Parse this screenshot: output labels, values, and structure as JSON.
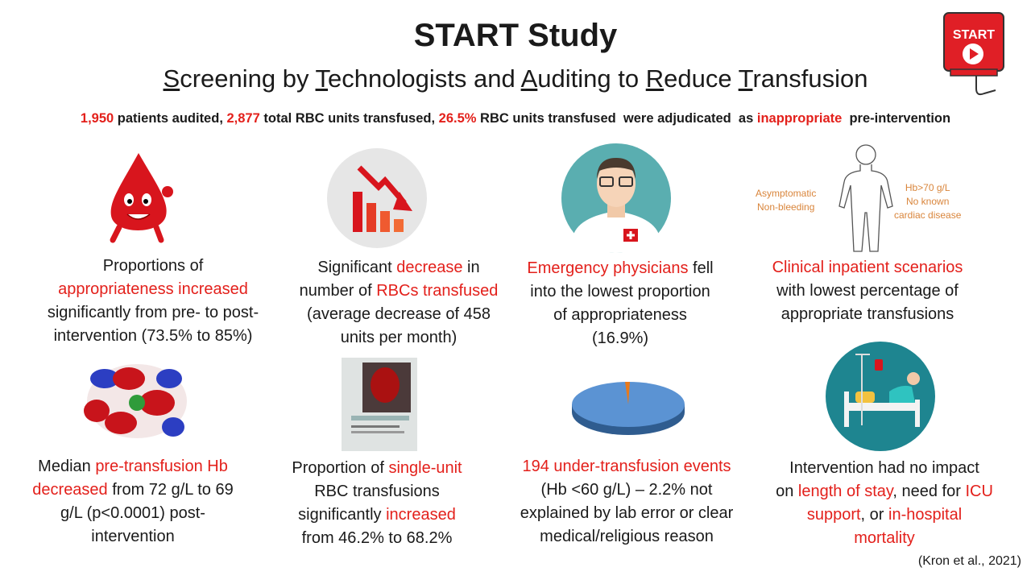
{
  "header": {
    "title": "START Study",
    "subtitle": [
      {
        "text": "S",
        "underline": true
      },
      {
        "text": "creening by "
      },
      {
        "text": "T",
        "underline": true
      },
      {
        "text": "echnologists and "
      },
      {
        "text": "A",
        "underline": true
      },
      {
        "text": "uditing to "
      },
      {
        "text": "R",
        "underline": true
      },
      {
        "text": "educe "
      },
      {
        "text": "T",
        "underline": true
      },
      {
        "text": "ransfusion"
      }
    ],
    "logo": "START"
  },
  "summary": [
    {
      "text": "1,950",
      "color": "#e3201b"
    },
    {
      "text": " patients audited, "
    },
    {
      "text": "2,877",
      "color": "#e3201b"
    },
    {
      "text": " total RBC units transfused, "
    },
    {
      "text": "26.5%",
      "color": "#e3201b"
    },
    {
      "text": " RBC units transfused  were adjudicated  as "
    },
    {
      "text": "inappropriate",
      "color": "#e3201b"
    },
    {
      "text": "  pre-intervention"
    }
  ],
  "body_labels": {
    "left": [
      "Asymptomatic",
      "Non-bleeding"
    ],
    "right": [
      "Hb>70 g/L",
      "No known",
      "cardiac disease"
    ]
  },
  "cards": [
    {
      "lines": [
        [
          {
            "text": "Proportions of"
          }
        ],
        [
          {
            "text": "appropriateness increased",
            "color": "#e3201b"
          }
        ],
        [
          {
            "text": "significantly from pre- to post-"
          }
        ],
        [
          {
            "text": "intervention (73.5% to 85%)"
          }
        ]
      ]
    },
    {
      "lines": [
        [
          {
            "text": "Significant "
          },
          {
            "text": "decrease",
            "color": "#e3201b"
          },
          {
            "text": " in"
          }
        ],
        [
          {
            "text": "number of "
          },
          {
            "text": "RBCs transfused",
            "color": "#e3201b"
          }
        ],
        [
          {
            "text": "(average decrease of 458"
          }
        ],
        [
          {
            "text": "units per month)"
          }
        ]
      ]
    },
    {
      "lines": [
        [
          {
            "text": "Emergency physicians",
            "color": "#e3201b"
          },
          {
            "text": " fell"
          }
        ],
        [
          {
            "text": "into the lowest proportion"
          }
        ],
        [
          {
            "text": "of appropriateness"
          }
        ],
        [
          {
            "text": "(16.9%)"
          }
        ]
      ]
    },
    {
      "lines": [
        [
          {
            "text": "Clinical inpatient scenarios",
            "color": "#e3201b"
          }
        ],
        [
          {
            "text": "with lowest percentage of"
          }
        ],
        [
          {
            "text": "appropriate transfusions"
          }
        ]
      ]
    },
    {
      "lines": [
        [
          {
            "text": "Median "
          },
          {
            "text": "pre-transfusion Hb",
            "color": "#e3201b"
          }
        ],
        [
          {
            "text": "decreased",
            "color": "#e3201b"
          },
          {
            "text": " from 72 g/L to 69"
          }
        ],
        [
          {
            "text": "g/L (p<0.0001) post-"
          }
        ],
        [
          {
            "text": "intervention"
          }
        ]
      ]
    },
    {
      "lines": [
        [
          {
            "text": "Proportion of "
          },
          {
            "text": "single-unit",
            "color": "#e3201b"
          }
        ],
        [
          {
            "text": "RBC transfusions"
          }
        ],
        [
          {
            "text": "significantly "
          },
          {
            "text": "increased",
            "color": "#e3201b"
          }
        ],
        [
          {
            "text": "from 46.2% to 68.2%"
          }
        ]
      ]
    },
    {
      "lines": [
        [
          {
            "text": "194 under-transfusion events",
            "color": "#e3201b"
          }
        ],
        [
          {
            "text": "(Hb <60 g/L) – 2.2% not"
          }
        ],
        [
          {
            "text": "explained by lab error or clear"
          }
        ],
        [
          {
            "text": "medical/religious reason"
          }
        ]
      ]
    },
    {
      "lines": [
        [
          {
            "text": "Intervention had no impact"
          }
        ],
        [
          {
            "text": "on "
          },
          {
            "text": "length of stay",
            "color": "#e3201b"
          },
          {
            "text": ", need for "
          },
          {
            "text": "ICU",
            "color": "#e3201b"
          }
        ],
        [
          {
            "text": "support",
            "color": "#e3201b"
          },
          {
            "text": ", or "
          },
          {
            "text": "in-hospital",
            "color": "#e3201b"
          }
        ],
        [
          {
            "text": "mortality",
            "color": "#e3201b"
          }
        ]
      ]
    }
  ],
  "citation": "(Kron et al., 2021)"
}
